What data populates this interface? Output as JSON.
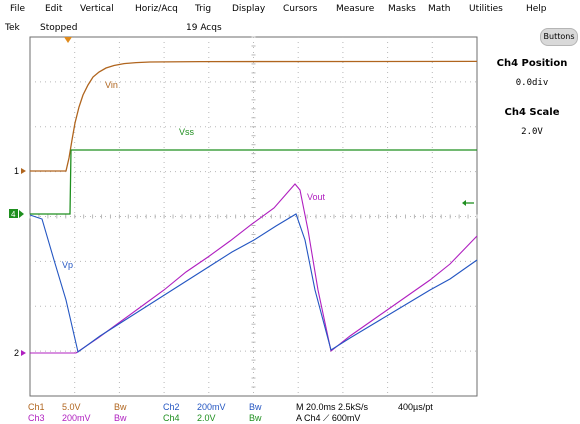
{
  "menu": [
    "File",
    "Edit",
    "Vertical",
    "Horiz/Acq",
    "Trig",
    "Display",
    "Cursors",
    "Measure",
    "Masks",
    "Math",
    "Utilities",
    "Help"
  ],
  "status": {
    "brand": "Tek",
    "run_state": "Stopped",
    "acqs": "19 Acqs"
  },
  "side_panel": {
    "button_label": "Buttons",
    "position_title": "Ch4 Position",
    "position_value": "0.0div",
    "scale_title": "Ch4 Scale",
    "scale_value": "2.0V"
  },
  "colors": {
    "ch1": "#b0651e",
    "ch2": "#2456c2",
    "ch3": "#b020c0",
    "ch4": "#1f8f1f",
    "grid": "#b8b8b8",
    "frame": "#6e6e6e"
  },
  "waveform_labels": {
    "vin": "Vin",
    "vss": "Vss",
    "vout": "Vout",
    "vp": "Vp"
  },
  "channel_markers": {
    "ch1": "1",
    "ch2": "2",
    "ch4": "4"
  },
  "readouts": {
    "ch1_label": "Ch1",
    "ch1_scale": "5.0V",
    "ch1_bw": "Bw",
    "ch2_label": "Ch2",
    "ch2_scale": "200mV",
    "ch2_bw": "Bw",
    "ch3_label": "Ch3",
    "ch3_scale": "200mV",
    "ch3_bw": "Bw",
    "ch4_label": "Ch4",
    "ch4_scale": "2.0V",
    "ch4_bw": "Bw",
    "timebase": "M 20.0ms 2.5kS/s",
    "resolution": "400µs/pt",
    "trigger": "A  Ch4  ⟋  600mV"
  }
}
